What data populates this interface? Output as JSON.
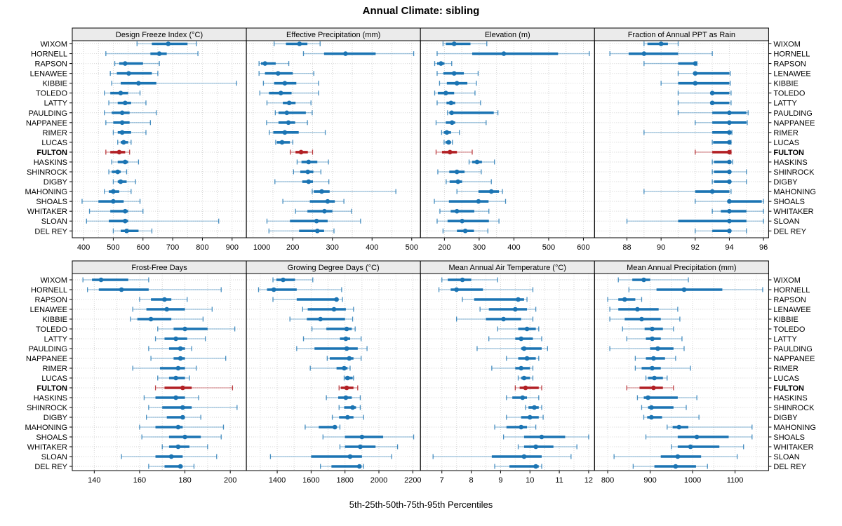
{
  "title": "Annual Climate: sibling",
  "footer": "5th-25th-50th-75th-95th Percentiles",
  "stations": [
    "WIXOM",
    "HORNELL",
    "RAPSON",
    "LENAWEE",
    "KIBBIE",
    "TOLEDO",
    "LATTY",
    "PAULDING",
    "NAPPANEE",
    "RIMER",
    "LUCAS",
    "FULTON",
    "HASKINS",
    "SHINROCK",
    "DIGBY",
    "MAHONING",
    "SHOALS",
    "WHITAKER",
    "SLOAN",
    "DEL REY"
  ],
  "highlight_station": "FULTON",
  "percentiles": [
    5,
    25,
    50,
    75,
    95
  ],
  "colors": {
    "series": "#1b74b3",
    "series_faint": "rgba(27,116,179,0.42)",
    "series_cap": "rgba(27,116,179,0.8)",
    "highlight": "#b22025",
    "highlight_faint": "rgba(178,32,37,0.45)",
    "highlight_cap": "rgba(178,32,37,0.85)",
    "gridline": "#d6d6d6",
    "header_bg": "#ebebeb",
    "border": "#000000",
    "text": "#000000"
  },
  "chart_data": [
    {
      "type": "scatter",
      "style": "percentile-intervals-5-25-50-75-95",
      "title": "Design Freeze Index (°C)",
      "xlim": [
        362,
        948
      ],
      "ticks": [
        400,
        500,
        600,
        700,
        800,
        900,
        1000
      ],
      "minor_step": 50,
      "values": [
        [
          580,
          630,
          685,
          750,
          780
        ],
        [
          475,
          625,
          655,
          680,
          785
        ],
        [
          505,
          520,
          540,
          600,
          655
        ],
        [
          490,
          512,
          552,
          630,
          650
        ],
        [
          495,
          525,
          585,
          645,
          915
        ],
        [
          470,
          490,
          525,
          550,
          590
        ],
        [
          485,
          515,
          540,
          560,
          610
        ],
        [
          470,
          495,
          530,
          555,
          645
        ],
        [
          475,
          500,
          530,
          555,
          625
        ],
        [
          500,
          515,
          530,
          560,
          610
        ],
        [
          515,
          525,
          535,
          550,
          560
        ],
        [
          475,
          490,
          520,
          540,
          555
        ],
        [
          495,
          515,
          540,
          550,
          585
        ],
        [
          485,
          495,
          515,
          525,
          545
        ],
        [
          500,
          515,
          525,
          545,
          575
        ],
        [
          470,
          485,
          500,
          520,
          560
        ],
        [
          395,
          450,
          500,
          535,
          590
        ],
        [
          420,
          490,
          540,
          550,
          600
        ],
        [
          410,
          485,
          540,
          550,
          855
        ],
        [
          500,
          525,
          545,
          585,
          630
        ]
      ]
    },
    {
      "type": "scatter",
      "style": "percentile-intervals-5-25-50-75-95",
      "title": "Effective Precipitation (mm)",
      "xlim": [
        83,
        522
      ],
      "ticks": [
        200,
        300,
        400,
        500
      ],
      "minor_step": 50,
      "values": [
        [
          153,
          183,
          217,
          237,
          269
        ],
        [
          227,
          279,
          333,
          409,
          505
        ],
        [
          115,
          120,
          130,
          157,
          190
        ],
        [
          115,
          130,
          163,
          200,
          253
        ],
        [
          126,
          153,
          180,
          209,
          265
        ],
        [
          117,
          140,
          170,
          197,
          265
        ],
        [
          135,
          175,
          191,
          207,
          246
        ],
        [
          156,
          164,
          185,
          233,
          249
        ],
        [
          134,
          164,
          189,
          206,
          237
        ],
        [
          141,
          151,
          180,
          215,
          282
        ],
        [
          157,
          160,
          173,
          193,
          200
        ],
        [
          194,
          207,
          221,
          238,
          250
        ],
        [
          211,
          222,
          240,
          262,
          290
        ],
        [
          202,
          219,
          238,
          252,
          271
        ],
        [
          155,
          224,
          240,
          251,
          291
        ],
        [
          249,
          253,
          273,
          293,
          460
        ],
        [
          175,
          243,
          288,
          306,
          329
        ],
        [
          207,
          237,
          280,
          300,
          348
        ],
        [
          135,
          193,
          260,
          288,
          371
        ],
        [
          140,
          216,
          262,
          279,
          304
        ]
      ]
    },
    {
      "type": "scatter",
      "style": "percentile-intervals-5-25-50-75-95",
      "title": "Elevation (m)",
      "xlim": [
        131,
        632
      ],
      "ticks": [
        200,
        300,
        400,
        500,
        600
      ],
      "minor_step": 50,
      "values": [
        [
          196,
          204,
          228,
          275,
          322
        ],
        [
          179,
          280,
          371,
          527,
          617
        ],
        [
          172,
          179,
          190,
          200,
          221
        ],
        [
          179,
          197,
          228,
          256,
          297
        ],
        [
          186,
          207,
          236,
          266,
          292
        ],
        [
          172,
          181,
          204,
          228,
          288
        ],
        [
          179,
          206,
          219,
          231,
          304
        ],
        [
          209,
          214,
          221,
          342,
          354
        ],
        [
          176,
          204,
          222,
          231,
          320
        ],
        [
          192,
          198,
          207,
          219,
          243
        ],
        [
          199,
          203,
          212,
          219,
          223
        ],
        [
          176,
          193,
          216,
          236,
          280
        ],
        [
          271,
          280,
          294,
          308,
          344
        ],
        [
          181,
          214,
          236,
          258,
          306
        ],
        [
          205,
          215,
          239,
          251,
          335
        ],
        [
          236,
          298,
          335,
          357,
          367
        ],
        [
          171,
          213,
          298,
          327,
          376
        ],
        [
          187,
          218,
          236,
          286,
          328
        ],
        [
          179,
          209,
          251,
          328,
          357
        ],
        [
          196,
          236,
          260,
          285,
          325
        ]
      ]
    },
    {
      "type": "scatter",
      "style": "percentile-intervals-5-25-50-75-95",
      "title": "Fraction of Annual PPT as Rain",
      "xlim": [
        86.1,
        96.3
      ],
      "ticks": [
        88,
        90,
        92,
        94,
        96
      ],
      "minor_step": 1,
      "values": [
        [
          89.0,
          89.2,
          90.0,
          90.4,
          91.0
        ],
        [
          87.0,
          88.1,
          89.0,
          91.0,
          93.0
        ],
        [
          89.0,
          91.0,
          92.0,
          92.0,
          92.1
        ],
        [
          91.0,
          91.9,
          92.0,
          94.0,
          94.05
        ],
        [
          90.0,
          91.0,
          92.0,
          94.0,
          94.05
        ],
        [
          91.0,
          92.9,
          93.0,
          94.0,
          94.1
        ],
        [
          91.0,
          93.0,
          93.0,
          94.0,
          94.1
        ],
        [
          91.0,
          93.0,
          94.0,
          95.0,
          95.1
        ],
        [
          92.0,
          93.0,
          94.0,
          95.0,
          95.05
        ],
        [
          89.0,
          93.0,
          94.0,
          94.1,
          94.15
        ],
        [
          93.0,
          93.05,
          94.0,
          94.05,
          94.1
        ],
        [
          92.0,
          93.0,
          94.0,
          94.05,
          94.1
        ],
        [
          93.0,
          93.1,
          94.0,
          94.1,
          94.2
        ],
        [
          93.0,
          93.1,
          94.0,
          94.1,
          95.0
        ],
        [
          93.0,
          93.1,
          94.0,
          94.1,
          95.0
        ],
        [
          89.0,
          92.0,
          93.0,
          94.0,
          94.1
        ],
        [
          92.0,
          93.9,
          94.0,
          95.9,
          96.0
        ],
        [
          93.0,
          93.5,
          94.0,
          95.0,
          96.0
        ],
        [
          88.0,
          91.0,
          94.0,
          95.0,
          96.0
        ],
        [
          92.0,
          93.0,
          94.0,
          94.1,
          95.0
        ]
      ]
    },
    {
      "type": "scatter",
      "style": "percentile-intervals-5-25-50-75-95",
      "title": "Frost-Free Days",
      "xlim": [
        130.3,
        207.1
      ],
      "ticks": [
        140,
        160,
        180,
        200
      ],
      "minor_step": 10,
      "values": [
        [
          135,
          139,
          143,
          155,
          164
        ],
        [
          137,
          142,
          152,
          164,
          196
        ],
        [
          160,
          165,
          171,
          174,
          181
        ],
        [
          157,
          163,
          172,
          180,
          192
        ],
        [
          156,
          159,
          165,
          174,
          188
        ],
        [
          168,
          175,
          180,
          190,
          202
        ],
        [
          167,
          171,
          176,
          181,
          189
        ],
        [
          164,
          173,
          178,
          180,
          183
        ],
        [
          165,
          175,
          178,
          180,
          198
        ],
        [
          157,
          169,
          177,
          180,
          185
        ],
        [
          168,
          173,
          176,
          180,
          182
        ],
        [
          167,
          171,
          179,
          183,
          201
        ],
        [
          162,
          167,
          176,
          180,
          186
        ],
        [
          164,
          170,
          179,
          183,
          203
        ],
        [
          163,
          172,
          179,
          180,
          187
        ],
        [
          160,
          167,
          177,
          179,
          197
        ],
        [
          161,
          173,
          180,
          187,
          196
        ],
        [
          170,
          173,
          177,
          182,
          190
        ],
        [
          152,
          167,
          174,
          179,
          194
        ],
        [
          164,
          171,
          178,
          179,
          184
        ]
      ]
    },
    {
      "type": "scatter",
      "style": "percentile-intervals-5-25-50-75-95",
      "title": "Growing Degree Days (°C)",
      "xlim": [
        1218,
        2245
      ],
      "ticks": [
        1400,
        1600,
        1800,
        2000,
        2200
      ],
      "minor_step": 100,
      "values": [
        [
          1375,
          1395,
          1435,
          1505,
          1610
        ],
        [
          1290,
          1340,
          1380,
          1515,
          1780
        ],
        [
          1375,
          1515,
          1750,
          1760,
          1785
        ],
        [
          1550,
          1580,
          1735,
          1805,
          1850
        ],
        [
          1475,
          1575,
          1655,
          1800,
          1845
        ],
        [
          1605,
          1690,
          1810,
          1840,
          1860
        ],
        [
          1555,
          1770,
          1805,
          1830,
          1895
        ],
        [
          1515,
          1620,
          1810,
          1875,
          1930
        ],
        [
          1695,
          1710,
          1825,
          1850,
          1895
        ],
        [
          1595,
          1750,
          1795,
          1815,
          1830
        ],
        [
          1795,
          1800,
          1815,
          1845,
          1850
        ],
        [
          1765,
          1775,
          1810,
          1850,
          1875
        ],
        [
          1690,
          1760,
          1805,
          1840,
          1890
        ],
        [
          1765,
          1795,
          1845,
          1865,
          1890
        ],
        [
          1725,
          1765,
          1815,
          1850,
          1910
        ],
        [
          1565,
          1645,
          1740,
          1750,
          1770
        ],
        [
          1670,
          1800,
          1900,
          2025,
          2205
        ],
        [
          1770,
          1800,
          1890,
          1980,
          2110
        ],
        [
          1360,
          1600,
          1830,
          1900,
          2075
        ],
        [
          1655,
          1720,
          1885,
          1895,
          1910
        ]
      ]
    },
    {
      "type": "scatter",
      "style": "percentile-intervals-5-25-50-75-95",
      "title": "Mean Annual Air Temperature (°C)",
      "xlim": [
        6.27,
        12.2
      ],
      "ticks": [
        7,
        8,
        9,
        10,
        11,
        12
      ],
      "minor_step": 0.5,
      "values": [
        [
          7.0,
          7.2,
          7.7,
          8.0,
          8.9
        ],
        [
          6.9,
          7.3,
          7.5,
          8.4,
          10.1
        ],
        [
          7.7,
          8.1,
          9.6,
          9.8,
          9.9
        ],
        [
          8.3,
          8.6,
          9.5,
          9.9,
          10.2
        ],
        [
          7.5,
          8.5,
          9.1,
          9.7,
          10.1
        ],
        [
          8.9,
          9.6,
          9.9,
          10.2,
          10.3
        ],
        [
          8.6,
          9.5,
          9.7,
          10.1,
          10.4
        ],
        [
          8.2,
          9.7,
          9.8,
          10.4,
          10.6
        ],
        [
          9.2,
          9.6,
          9.9,
          10.2,
          10.3
        ],
        [
          8.7,
          9.5,
          9.7,
          10.0,
          10.1
        ],
        [
          9.6,
          9.7,
          9.8,
          10.0,
          10.1
        ],
        [
          9.5,
          9.65,
          9.85,
          10.3,
          10.4
        ],
        [
          9.2,
          9.4,
          9.75,
          9.9,
          10.3
        ],
        [
          9.85,
          9.95,
          10.15,
          10.3,
          10.4
        ],
        [
          9.2,
          9.7,
          10.0,
          10.3,
          10.45
        ],
        [
          8.8,
          9.2,
          9.7,
          9.9,
          10.2
        ],
        [
          9.1,
          9.8,
          10.4,
          11.2,
          12.0
        ],
        [
          9.6,
          9.8,
          10.2,
          10.8,
          11.6
        ],
        [
          6.7,
          8.7,
          9.8,
          10.4,
          11.4
        ],
        [
          8.8,
          9.3,
          10.2,
          10.3,
          10.4
        ]
      ]
    },
    {
      "type": "scatter",
      "style": "percentile-intervals-5-25-50-75-95",
      "title": "Mean Annual Precipitation (mm)",
      "xlim": [
        769,
        1179
      ],
      "ticks": [
        800,
        900,
        1000,
        1100
      ],
      "minor_step": 50,
      "values": [
        [
          825,
          858,
          885,
          900,
          990
        ],
        [
          850,
          915,
          980,
          1070,
          1165
        ],
        [
          800,
          825,
          840,
          865,
          880
        ],
        [
          805,
          825,
          870,
          920,
          965
        ],
        [
          805,
          840,
          880,
          925,
          970
        ],
        [
          835,
          887,
          905,
          930,
          955
        ],
        [
          845,
          890,
          905,
          925,
          975
        ],
        [
          805,
          900,
          918,
          955,
          980
        ],
        [
          865,
          890,
          908,
          935,
          960
        ],
        [
          865,
          880,
          905,
          925,
          995
        ],
        [
          890,
          895,
          910,
          930,
          940
        ],
        [
          845,
          875,
          908,
          930,
          955
        ],
        [
          870,
          885,
          895,
          965,
          1010
        ],
        [
          880,
          895,
          903,
          955,
          985
        ],
        [
          885,
          893,
          903,
          928,
          1015
        ],
        [
          940,
          953,
          968,
          990,
          1140
        ],
        [
          890,
          965,
          1010,
          1085,
          1140
        ],
        [
          950,
          965,
          995,
          1063,
          1120
        ],
        [
          815,
          925,
          965,
          1020,
          1105
        ],
        [
          860,
          910,
          960,
          1008,
          1035
        ]
      ]
    }
  ]
}
